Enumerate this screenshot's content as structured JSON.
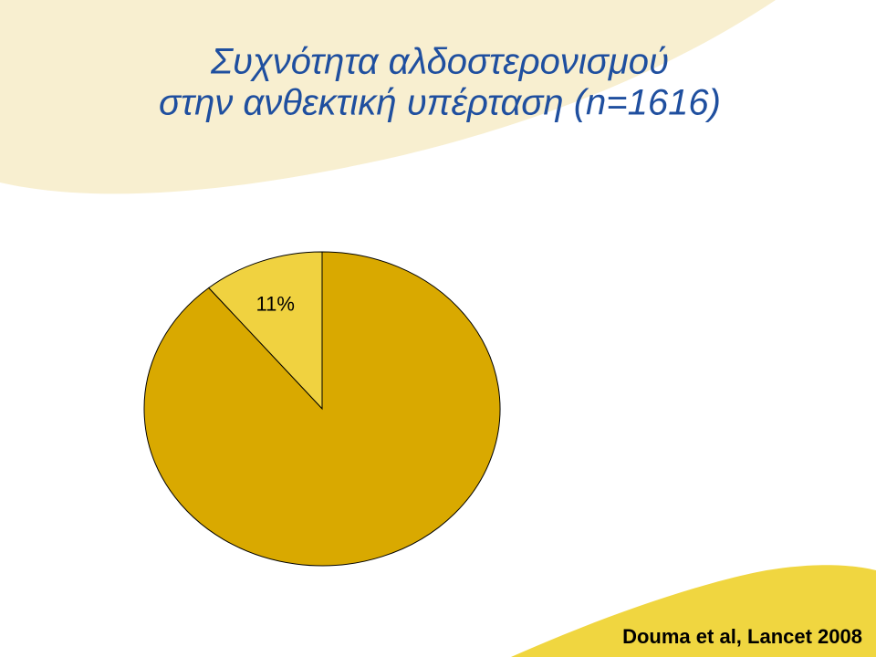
{
  "chart_data": {
    "type": "pie",
    "title": [
      "Συχνότητα αλδοστερονισμού",
      "στην ανθεκτική υπέρταση (n=1616)"
    ],
    "values": [
      11,
      89
    ],
    "value_labels": [
      "11%",
      null
    ],
    "colors": [
      "#f0d240",
      "#d9a900"
    ],
    "source": "Douma et al, Lancet 2008"
  }
}
